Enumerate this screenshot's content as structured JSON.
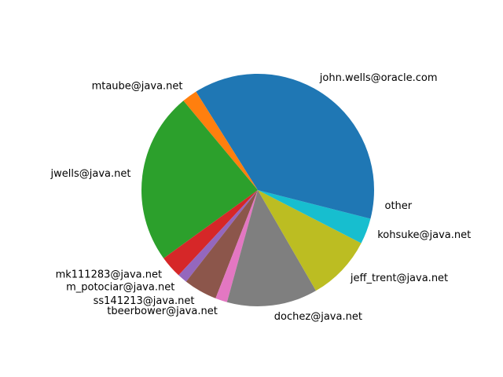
{
  "chart_data": {
    "type": "pie",
    "title": "",
    "start_angle_deg": 0,
    "direction": "counterclockwise",
    "slices": [
      {
        "label": "john.wells@oracle.com",
        "value": 35.0,
        "color": "#1f77b4"
      },
      {
        "label": "mtaube@java.net",
        "value": 2.2,
        "color": "#ff7f0e"
      },
      {
        "label": "jwells@java.net",
        "value": 24.7,
        "color": "#2ca02c"
      },
      {
        "label": "mk111283@java.net",
        "value": 3.2,
        "color": "#d62728"
      },
      {
        "label": "m_potociar@java.net",
        "value": 1.4,
        "color": "#9467bd"
      },
      {
        "label": "ss141213@java.net",
        "value": 4.8,
        "color": "#8c564b"
      },
      {
        "label": "tbeerbower@java.net",
        "value": 1.7,
        "color": "#e377c2"
      },
      {
        "label": "dochez@java.net",
        "value": 13.0,
        "color": "#7f7f7f"
      },
      {
        "label": "jeff_trent@java.net",
        "value": 9.4,
        "color": "#bcbd22"
      },
      {
        "label": "kohsuke@java.net",
        "value": 3.7,
        "color": "#17becf"
      },
      {
        "label": "other",
        "value": 4.1,
        "color": "#1f77b4"
      }
    ]
  }
}
